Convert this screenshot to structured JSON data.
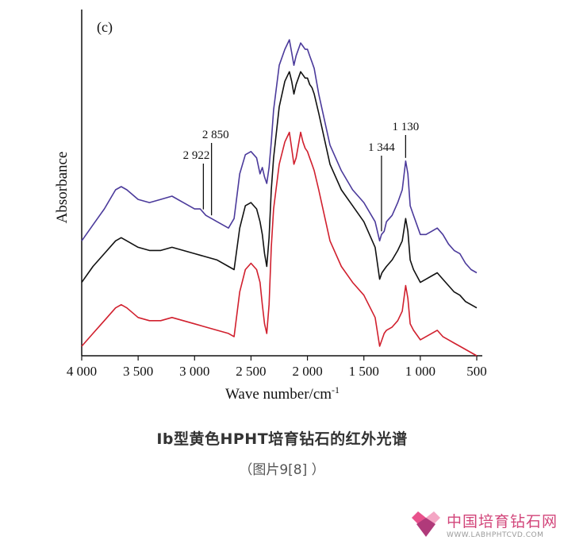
{
  "chart_data": {
    "type": "line",
    "panel_label": "(c)",
    "xlabel": "Wave number/cm",
    "xlabel_superscript": "-1",
    "ylabel": "Absorbance",
    "xlim": [
      4000,
      500
    ],
    "x_reversed": true,
    "x_ticks": [
      4000,
      3500,
      3000,
      2500,
      2000,
      1500,
      1000,
      500
    ],
    "x_tick_labels": [
      "4 000",
      "3 500",
      "3 000",
      "2 500",
      "2 000",
      "1 500",
      "1 000",
      "500"
    ],
    "ylim": [
      0,
      100
    ],
    "y_ticks_shown": false,
    "series": [
      {
        "color": "#4b3a9b",
        "x": [
          4000,
          3900,
          3800,
          3700,
          3650,
          3600,
          3500,
          3400,
          3300,
          3200,
          3100,
          3000,
          2950,
          2900,
          2850,
          2800,
          2700,
          2650,
          2600,
          2550,
          2500,
          2450,
          2420,
          2400,
          2380,
          2360,
          2340,
          2320,
          2300,
          2250,
          2200,
          2160,
          2140,
          2120,
          2100,
          2060,
          2040,
          2020,
          2000,
          1980,
          1960,
          1940,
          1900,
          1850,
          1800,
          1700,
          1600,
          1500,
          1400,
          1360,
          1344,
          1320,
          1300,
          1250,
          1200,
          1160,
          1130,
          1110,
          1090,
          1060,
          1000,
          950,
          900,
          850,
          800,
          750,
          700,
          650,
          600,
          550,
          500
        ],
        "values": [
          34,
          39,
          44,
          50,
          51,
          50,
          47,
          46,
          47,
          48,
          46,
          44,
          44,
          42,
          41,
          40,
          38,
          41,
          55,
          61,
          62,
          60,
          55,
          57,
          54,
          52,
          57,
          65,
          75,
          89,
          94,
          97,
          93,
          89,
          92,
          96,
          95,
          94,
          94,
          92,
          90,
          88,
          80,
          72,
          64,
          56,
          50,
          46,
          40,
          34,
          36,
          37,
          40,
          42,
          46,
          50,
          59,
          55,
          45,
          42,
          36,
          36,
          37,
          38,
          36,
          33,
          31,
          30,
          27,
          25,
          24
        ]
      },
      {
        "color": "#111111",
        "x": [
          4000,
          3900,
          3800,
          3700,
          3650,
          3600,
          3500,
          3400,
          3300,
          3200,
          3100,
          3000,
          2900,
          2800,
          2700,
          2650,
          2600,
          2550,
          2500,
          2450,
          2420,
          2400,
          2380,
          2360,
          2340,
          2320,
          2300,
          2250,
          2200,
          2160,
          2140,
          2120,
          2100,
          2060,
          2040,
          2020,
          2000,
          1980,
          1960,
          1940,
          1900,
          1850,
          1800,
          1700,
          1600,
          1500,
          1400,
          1360,
          1340,
          1320,
          1300,
          1250,
          1200,
          1160,
          1130,
          1110,
          1090,
          1060,
          1000,
          950,
          900,
          850,
          800,
          750,
          700,
          650,
          600,
          550,
          500
        ],
        "values": [
          21,
          26,
          30,
          34,
          35,
          34,
          32,
          31,
          31,
          32,
          31,
          30,
          29,
          28,
          26,
          25,
          38,
          45,
          46,
          44,
          40,
          36,
          30,
          26,
          35,
          50,
          60,
          76,
          84,
          87,
          84,
          80,
          83,
          87,
          86,
          85,
          85,
          83,
          82,
          80,
          74,
          66,
          58,
          50,
          45,
          40,
          32,
          22,
          24,
          25,
          26,
          28,
          31,
          34,
          41,
          37,
          28,
          25,
          21,
          22,
          23,
          24,
          22,
          20,
          18,
          17,
          15,
          14,
          13
        ]
      },
      {
        "color": "#d1202e",
        "x": [
          4000,
          3900,
          3800,
          3700,
          3650,
          3600,
          3500,
          3400,
          3300,
          3200,
          3100,
          3000,
          2900,
          2800,
          2700,
          2650,
          2600,
          2550,
          2500,
          2450,
          2420,
          2400,
          2380,
          2360,
          2340,
          2320,
          2300,
          2250,
          2200,
          2160,
          2140,
          2120,
          2100,
          2060,
          2040,
          2020,
          2000,
          1980,
          1960,
          1940,
          1900,
          1850,
          1800,
          1700,
          1600,
          1500,
          1400,
          1360,
          1340,
          1320,
          1300,
          1250,
          1200,
          1160,
          1130,
          1110,
          1090,
          1060,
          1000,
          950,
          900,
          850,
          800,
          750,
          700,
          650,
          600,
          550,
          500
        ],
        "values": [
          1,
          5,
          9,
          13,
          14,
          13,
          10,
          9,
          9,
          10,
          9,
          8,
          7,
          6,
          5,
          4,
          18,
          25,
          27,
          25,
          21,
          14,
          8,
          5,
          14,
          32,
          44,
          58,
          65,
          68,
          63,
          58,
          60,
          68,
          65,
          63,
          62,
          60,
          58,
          56,
          50,
          42,
          34,
          26,
          21,
          17,
          10,
          1,
          3,
          5,
          6,
          7,
          9,
          12,
          20,
          16,
          8,
          6,
          3,
          4,
          5,
          6,
          4,
          3,
          2,
          1,
          0,
          -1,
          -2
        ]
      }
    ],
    "annotations": [
      {
        "label": "2 922",
        "x": 2922,
        "series_index": 0
      },
      {
        "label": "2 850",
        "x": 2850,
        "series_index": 0
      },
      {
        "label": "1 344",
        "x": 1344,
        "series_index": 0
      },
      {
        "label": "1 130",
        "x": 1130,
        "series_index": 0
      }
    ]
  },
  "caption": {
    "title": "Ⅰb型黄色HPHT培育钻石的红外光谱",
    "subtitle": "（图片9[8] ）"
  },
  "watermark": {
    "name": "中国培育钻石网",
    "url": "WWW.LABHPHTCVD.COM",
    "logo_colors": [
      "#e8528c",
      "#f4a6c4",
      "#b03a7a"
    ]
  }
}
